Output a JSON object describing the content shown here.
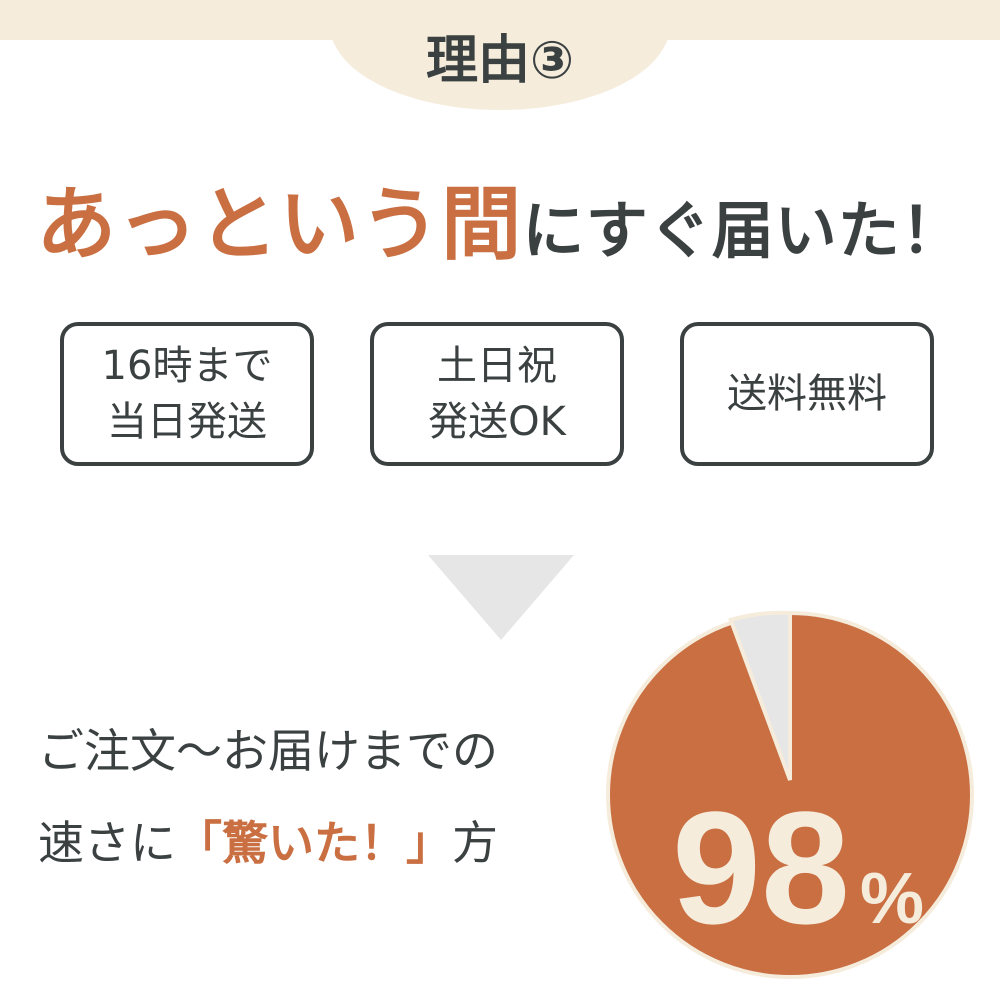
{
  "header": {
    "reason_label": "理由③"
  },
  "headline": {
    "accent": "あっという間",
    "rest": "にすぐ届いた！"
  },
  "features": [
    {
      "line1": "16時まで",
      "line2": "当日発送"
    },
    {
      "line1": "土日祝",
      "line2": "発送OK"
    },
    {
      "line1": "送料無料",
      "line2": ""
    }
  ],
  "caption": {
    "line1": "ご注文〜お届けまでの",
    "line2_before": "速さに",
    "line2_accent": "「驚いた！」",
    "line2_after": "方"
  },
  "stat": {
    "value": "98",
    "unit": "%",
    "percent": 98
  },
  "colors": {
    "accent": "#c96f42",
    "beige": "#f5ecdc",
    "text": "#3b4141",
    "gray": "#e6e6e6"
  }
}
